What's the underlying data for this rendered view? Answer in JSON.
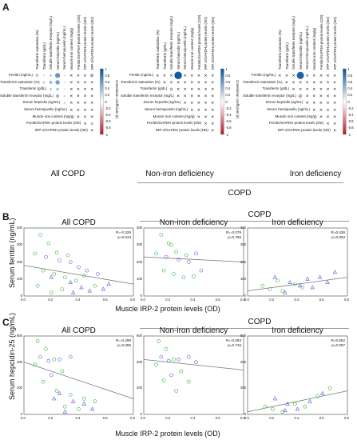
{
  "panelA": {
    "letter": "A",
    "groups": [
      "All COPD",
      "Non-iron deficiency",
      "Iron deficiency"
    ],
    "copd_label": "COPD",
    "colorbar_label": "Correlation coefficient (r)",
    "colorbar_ticks": [
      "1",
      "0.8",
      "0.6",
      "0.4",
      "0.2",
      "0",
      "-0.2",
      "-0.4",
      "-0.6",
      "-0.8",
      "-1"
    ],
    "matrix_columns": [
      "Transferrin saturation (%)",
      "Transferrin (g/dL)",
      "Soluble transferrin receptor (mg/L)",
      "Serum hepcidin (ng/mL)",
      "Serum hemojuvelin (ng/mL)",
      "Muscle iron content (mg/g)",
      "Ferritin/GAPDH protein levels (OD)",
      "IRP-1/GAPDH protein levels (OD)",
      "IRP-2/GAPDH protein levels (OD)"
    ],
    "matrix_rows": [
      "Ferritin (ng/mL)",
      "Transferrin saturation (%)",
      "Transferrin (g/dL)",
      "Soluble transferrin receptor (mg/L)",
      "Serum hepcidin (ng/mL)",
      "Serum hemojuvelin (ng/mL)",
      "Muscle iron content (mg/g)",
      "Ferritin/GAPDH protein levels (OD)",
      "IRP-1/GAPDH protein levels (OD)"
    ],
    "matrices": [
      [
        [
          0.35,
          -0.2,
          0.3,
          0.62,
          0.18,
          "x",
          "x",
          "x",
          0.45
        ],
        [
          -0.3,
          0.4,
          0.55,
          0.15,
          "x",
          "x",
          "x",
          "x"
        ],
        [
          0.3,
          0.35,
          0.12,
          "x",
          "x",
          "x",
          "x"
        ],
        [
          0.42,
          0.25,
          "x",
          "x",
          "x",
          "x"
        ],
        [
          0.25,
          "x",
          "x",
          "x",
          "x"
        ],
        [
          "x",
          "x",
          "x",
          "x"
        ],
        [
          "x",
          "x",
          "x"
        ],
        [
          "x",
          0.35
        ],
        [
          "x"
        ]
      ],
      [
        [
          "x",
          "x",
          "x",
          0.95,
          "x",
          "x",
          "x",
          "x",
          "x"
        ],
        [
          "x",
          "x",
          "x",
          "x",
          "x",
          "x",
          "x",
          "x"
        ],
        [
          0.4,
          "x",
          "x",
          "x",
          "x",
          "x",
          "x"
        ],
        [
          "x",
          "x",
          "x",
          "x",
          "x",
          "x"
        ],
        [
          "x",
          "x",
          "x",
          "x",
          "x"
        ],
        [
          "x",
          "x",
          "x",
          "x"
        ],
        [
          "x",
          "x",
          "x"
        ],
        [
          "x",
          "x"
        ],
        [
          "x"
        ]
      ],
      [
        [
          "x",
          "x",
          "x",
          0.9,
          "x",
          "x",
          "x",
          "x",
          "x"
        ],
        [
          "x",
          "x",
          "x",
          "x",
          "x",
          "x",
          "x",
          "x"
        ],
        [
          "x",
          "x",
          "x",
          "x",
          "x",
          "x",
          "x"
        ],
        [
          -0.45,
          "x",
          "x",
          "x",
          "x",
          "x"
        ],
        [
          "x",
          "x",
          "x",
          "x",
          "x"
        ],
        [
          "x",
          "x",
          "x",
          "x"
        ],
        [
          "x",
          "x",
          "x"
        ],
        [
          "x",
          "x"
        ],
        [
          "x"
        ]
      ]
    ]
  },
  "panelB": {
    "letter": "B",
    "copd_label": "COPD",
    "ylabel": "Serum ferritin (ng/mL)",
    "xlabel": "Muscle IRP-2 protein levels (OD)"
  },
  "panelC": {
    "letter": "C",
    "copd_label": "COPD",
    "ylabel": "Serum hepcidin-25 (ng/mL)",
    "xlabel": "Muscle IRP-2 protein levels (OD)"
  },
  "chart_data": [
    {
      "type": "scatter",
      "title": "All COPD",
      "xlabel": "Muscle IRP-2 protein levels (OD)",
      "ylabel": "Serum ferritin (ng/mL)",
      "xlim": [
        0.0,
        0.8
      ],
      "ylim": [
        0,
        400
      ],
      "xticks": [
        "0.0",
        "0.2",
        "0.4",
        "0.6",
        "0.8"
      ],
      "yticks": [
        "0",
        "100",
        "200",
        "300",
        "400"
      ],
      "stats": [
        "R=-0.325",
        "p=0.044"
      ],
      "fit": [
        [
          0.0,
          180
        ],
        [
          0.8,
          70
        ]
      ],
      "series": [
        {
          "marker": "circle",
          "color": "#2fb52f",
          "points": [
            [
              0.12,
              360
            ],
            [
              0.18,
              310
            ],
            [
              0.08,
              250
            ],
            [
              0.24,
              255
            ],
            [
              0.32,
              240
            ],
            [
              0.14,
              150
            ],
            [
              0.22,
              130
            ],
            [
              0.3,
              110
            ],
            [
              0.38,
              90
            ],
            [
              0.44,
              120
            ],
            [
              0.1,
              60
            ],
            [
              0.28,
              40
            ],
            [
              0.52,
              60
            ],
            [
              0.2,
              20
            ]
          ]
        },
        {
          "marker": "circle-open",
          "color": "#5555dd",
          "points": [
            [
              0.16,
              230
            ],
            [
              0.26,
              210
            ],
            [
              0.34,
              200
            ],
            [
              0.46,
              150
            ],
            [
              0.54,
              130
            ],
            [
              0.4,
              170
            ]
          ]
        },
        {
          "marker": "triangle",
          "color": "#5555dd",
          "points": [
            [
              0.2,
              110
            ],
            [
              0.34,
              80
            ],
            [
              0.42,
              50
            ],
            [
              0.58,
              40
            ],
            [
              0.62,
              70
            ],
            [
              0.48,
              30
            ],
            [
              0.36,
              20
            ]
          ]
        }
      ]
    },
    {
      "type": "scatter",
      "title": "Non-iron deficiency",
      "xlabel": "Muscle IRP-2 protein levels (OD)",
      "ylabel": "",
      "xlim": [
        0.0,
        0.8
      ],
      "ylim": [
        0,
        400
      ],
      "xticks": [
        "0.0",
        "0.2",
        "0.4",
        "0.6",
        "0.8"
      ],
      "yticks": [
        "0",
        "100",
        "200",
        "300",
        "400"
      ],
      "stats": [
        "R=-0.079",
        "p=0.765"
      ],
      "fit": [
        [
          0.0,
          230
        ],
        [
          0.8,
          200
        ]
      ],
      "series": [
        {
          "marker": "circle",
          "color": "#2fb52f",
          "points": [
            [
              0.14,
              360
            ],
            [
              0.2,
              310
            ],
            [
              0.1,
              250
            ],
            [
              0.26,
              260
            ],
            [
              0.34,
              240
            ],
            [
              0.16,
              150
            ],
            [
              0.24,
              130
            ],
            [
              0.32,
              110
            ],
            [
              0.4,
              115
            ],
            [
              0.22,
              300
            ]
          ]
        },
        {
          "marker": "circle-open",
          "color": "#5555dd",
          "points": [
            [
              0.18,
              230
            ],
            [
              0.28,
              215
            ],
            [
              0.36,
              200
            ],
            [
              0.46,
              150
            ],
            [
              0.42,
              250
            ]
          ]
        }
      ]
    },
    {
      "type": "scatter",
      "title": "Iron deficiency",
      "xlabel": "Muscle IRP-2 protein levels (OD)",
      "ylabel": "",
      "xlim": [
        0.0,
        0.8
      ],
      "ylim": [
        0,
        400
      ],
      "xticks": [
        "0.0",
        "0.2",
        "0.4",
        "0.6",
        "0.8"
      ],
      "yticks": [
        "0",
        "100",
        "200",
        "300",
        "400"
      ],
      "stats": [
        "R=0.436",
        "p=0.003"
      ],
      "fit": [
        [
          0.0,
          30
        ],
        [
          0.8,
          110
        ]
      ],
      "series": [
        {
          "marker": "circle",
          "color": "#2fb52f",
          "points": [
            [
              0.12,
              60
            ],
            [
              0.18,
              40
            ],
            [
              0.28,
              30
            ],
            [
              0.38,
              70
            ],
            [
              0.24,
              90
            ],
            [
              0.44,
              50
            ]
          ]
        },
        {
          "marker": "triangle",
          "color": "#5555dd",
          "points": [
            [
              0.22,
              110
            ],
            [
              0.34,
              80
            ],
            [
              0.42,
              60
            ],
            [
              0.52,
              50
            ],
            [
              0.58,
              110
            ],
            [
              0.64,
              80
            ],
            [
              0.7,
              140
            ],
            [
              0.48,
              100
            ],
            [
              0.3,
              20
            ]
          ]
        }
      ]
    },
    {
      "type": "scatter",
      "title": "All COPD",
      "xlabel": "Muscle IRP-2 protein levels (OD)",
      "ylabel": "Serum hepcidin-25 (ng/mL)",
      "xlim": [
        0.0,
        0.8
      ],
      "ylim": [
        0,
        600
      ],
      "xticks": [
        "0.0",
        "0.2",
        "0.4",
        "0.6",
        "0.8"
      ],
      "yticks": [
        "0",
        "200",
        "400",
        "600"
      ],
      "stats": [
        "R=-0.298",
        "p=0.065"
      ],
      "fit": [
        [
          0.0,
          400
        ],
        [
          0.8,
          120
        ]
      ],
      "series": [
        {
          "marker": "circle",
          "color": "#2fb52f",
          "points": [
            [
              0.1,
              560
            ],
            [
              0.16,
              500
            ],
            [
              0.08,
              380
            ],
            [
              0.22,
              420
            ],
            [
              0.28,
              330
            ],
            [
              0.14,
              250
            ],
            [
              0.24,
              180
            ],
            [
              0.34,
              150
            ],
            [
              0.44,
              120
            ],
            [
              0.52,
              100
            ],
            [
              0.3,
              60
            ],
            [
              0.4,
              40
            ]
          ]
        },
        {
          "marker": "circle-open",
          "color": "#5555dd",
          "points": [
            [
              0.18,
              410
            ],
            [
              0.26,
              420
            ],
            [
              0.34,
              440
            ],
            [
              0.12,
              440
            ],
            [
              0.2,
              300
            ]
          ]
        },
        {
          "marker": "triangle",
          "color": "#5555dd",
          "points": [
            [
              0.26,
              160
            ],
            [
              0.36,
              100
            ],
            [
              0.44,
              80
            ],
            [
              0.5,
              40
            ],
            [
              0.3,
              20
            ],
            [
              0.22,
              120
            ]
          ]
        }
      ]
    },
    {
      "type": "scatter",
      "title": "Non-iron deficiency",
      "xlabel": "Muscle IRP-2 protein levels (OD)",
      "ylabel": "",
      "xlim": [
        0.0,
        0.8
      ],
      "ylim": [
        0,
        600
      ],
      "xticks": [
        "0.0",
        "0.2",
        "0.4",
        "0.6",
        "0.8"
      ],
      "yticks": [
        "0",
        "200",
        "400",
        "600"
      ],
      "stats": [
        "R=-0.093",
        "p=0.715"
      ],
      "fit": [
        [
          0.0,
          420
        ],
        [
          0.8,
          340
        ]
      ],
      "series": [
        {
          "marker": "circle",
          "color": "#2fb52f",
          "points": [
            [
              0.12,
              560
            ],
            [
              0.18,
              500
            ],
            [
              0.1,
              380
            ],
            [
              0.24,
              420
            ],
            [
              0.3,
              330
            ],
            [
              0.16,
              260
            ],
            [
              0.26,
              180
            ],
            [
              0.36,
              250
            ]
          ]
        },
        {
          "marker": "circle-open",
          "color": "#5555dd",
          "points": [
            [
              0.2,
              410
            ],
            [
              0.28,
              420
            ],
            [
              0.36,
              440
            ],
            [
              0.14,
              440
            ],
            [
              0.42,
              400
            ],
            [
              0.22,
              300
            ]
          ]
        }
      ]
    },
    {
      "type": "scatter",
      "title": "Iron deficiency",
      "xlabel": "Muscle IRP-2 protein levels (OD)",
      "ylabel": "",
      "xlim": [
        0.0,
        0.8
      ],
      "ylim": [
        0,
        600
      ],
      "xticks": [
        "0.0",
        "0.2",
        "0.4",
        "0.6",
        "0.8"
      ],
      "yticks": [
        "0",
        "200",
        "400",
        "600"
      ],
      "stats": [
        "R=0.562",
        "p=0.007"
      ],
      "fit": [
        [
          0.0,
          20
        ],
        [
          0.8,
          180
        ]
      ],
      "series": [
        {
          "marker": "circle",
          "color": "#2fb52f",
          "points": [
            [
              0.14,
              60
            ],
            [
              0.2,
              40
            ],
            [
              0.28,
              20
            ],
            [
              0.38,
              80
            ],
            [
              0.46,
              60
            ],
            [
              0.56,
              140
            ],
            [
              0.66,
              200
            ]
          ]
        },
        {
          "marker": "triangle",
          "color": "#5555dd",
          "points": [
            [
              0.22,
              120
            ],
            [
              0.32,
              80
            ],
            [
              0.4,
              40
            ],
            [
              0.5,
              100
            ],
            [
              0.6,
              160
            ],
            [
              0.3,
              30
            ]
          ]
        }
      ]
    }
  ]
}
